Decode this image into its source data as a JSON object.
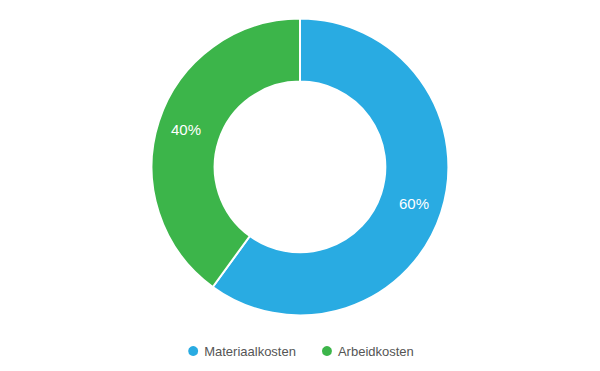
{
  "chart_data": {
    "type": "pie",
    "categories": [
      "Materiaalkosten",
      "Arbeidkosten"
    ],
    "values": [
      60,
      40
    ],
    "value_labels": [
      "60%",
      "40%"
    ],
    "colors": [
      "#29ABE2",
      "#3CB54A"
    ],
    "data_labels": true,
    "legend": "bottom"
  }
}
